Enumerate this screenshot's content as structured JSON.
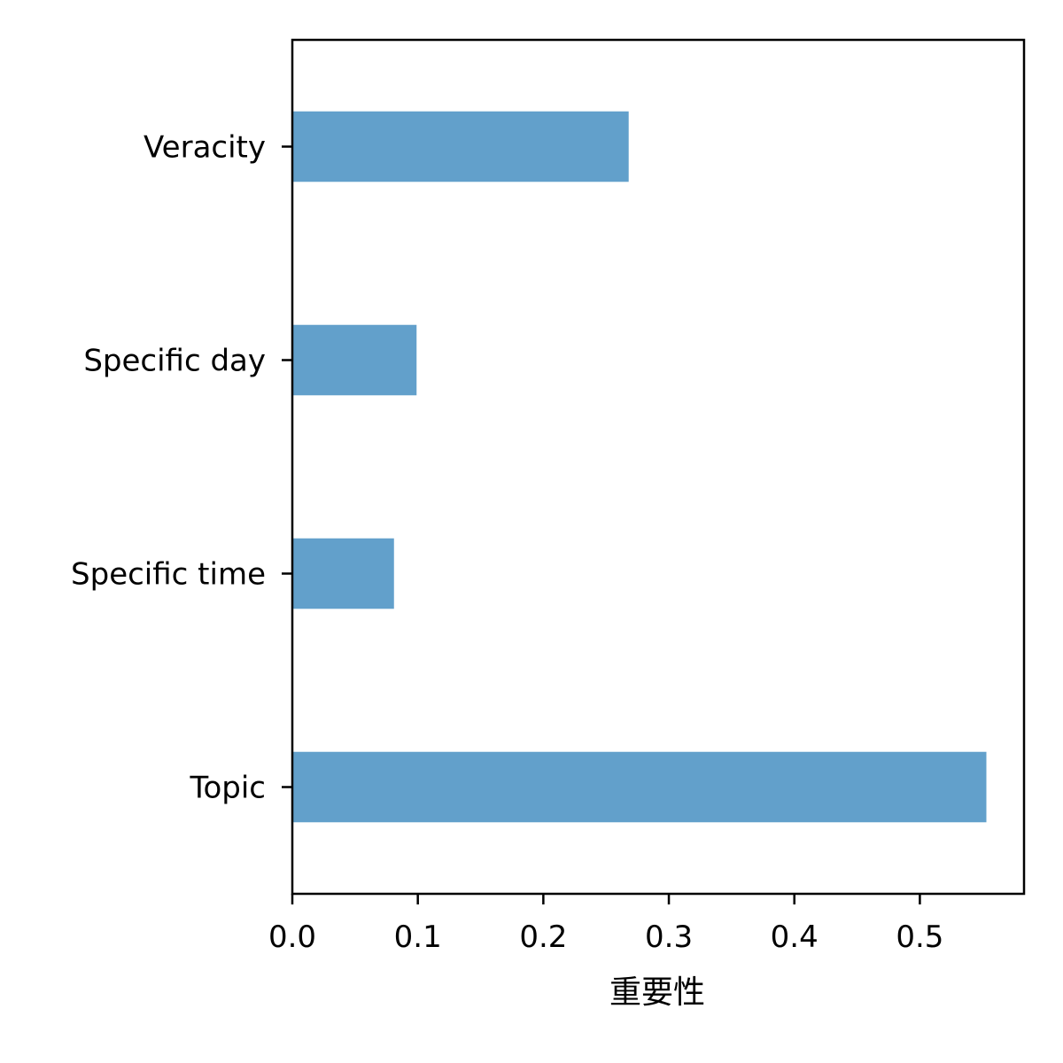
{
  "chart_data": {
    "type": "bar",
    "orientation": "horizontal",
    "categories": [
      "Veracity",
      "Specific day",
      "Specific time",
      "Topic"
    ],
    "values": [
      0.268,
      0.099,
      0.081,
      0.553
    ],
    "xlabel": "重要性",
    "ylabel": "",
    "xlim": [
      0,
      0.583
    ],
    "xticks": [
      0.0,
      0.1,
      0.2,
      0.3,
      0.4,
      0.5
    ],
    "xtick_labels": [
      "0.0",
      "0.1",
      "0.2",
      "0.3",
      "0.4",
      "0.5"
    ],
    "bar_color": "#62a0cb",
    "grid": false,
    "legend": "none"
  }
}
